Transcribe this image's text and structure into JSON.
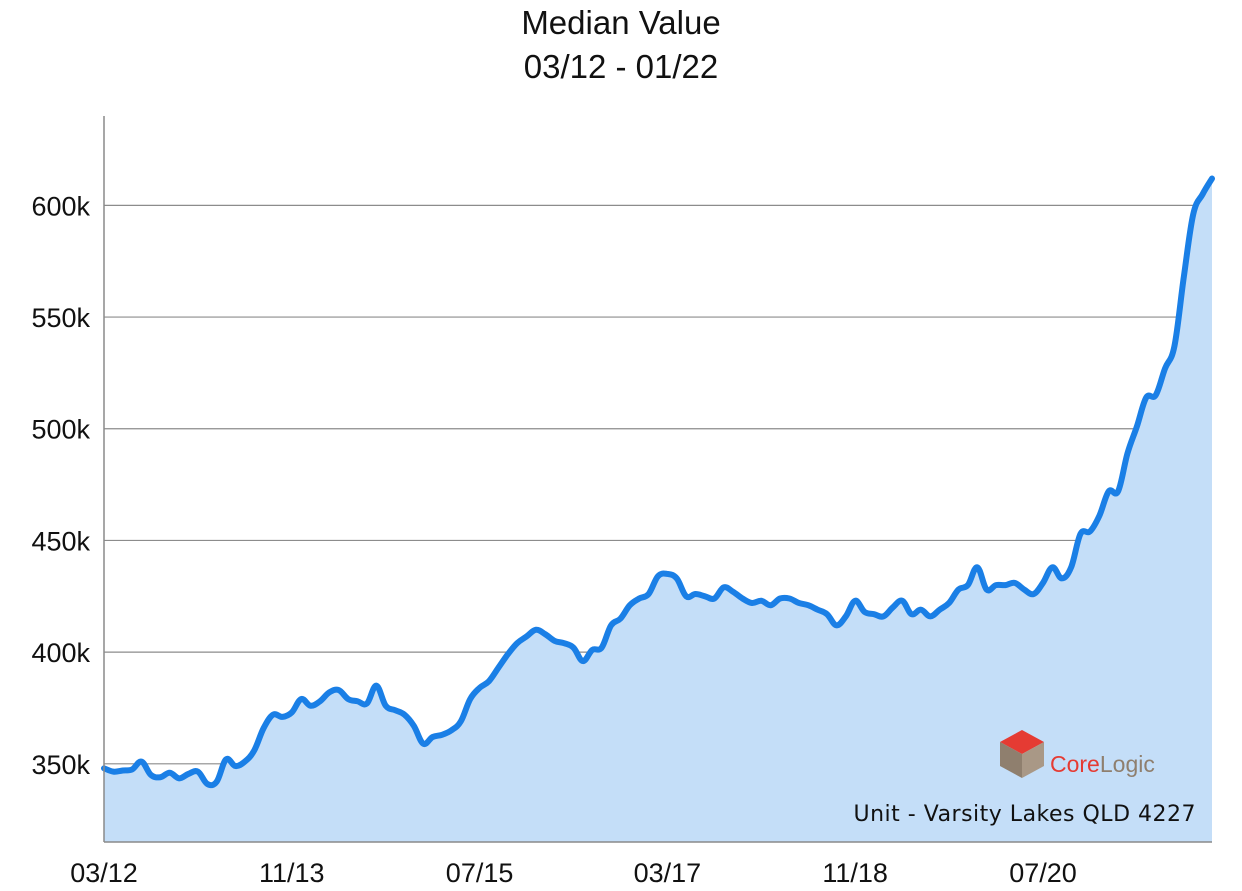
{
  "chart_data": {
    "type": "area",
    "title": "Median Value",
    "subtitle": "03/12 - 01/22",
    "xlabel": "",
    "ylabel": "",
    "x_tick_labels": [
      "03/12",
      "11/13",
      "07/15",
      "03/17",
      "11/18",
      "07/20"
    ],
    "y_tick_labels": [
      "350k",
      "400k",
      "450k",
      "500k",
      "550k",
      "600k"
    ],
    "y_ticks": [
      350000,
      400000,
      450000,
      500000,
      550000,
      600000
    ],
    "ylim": [
      315000,
      640000
    ],
    "xlim": [
      "2012-03",
      "2022-01"
    ],
    "grid": "horizontal",
    "legend": "none",
    "line_color": "#1a7fe6",
    "fill_color": "#c4def8",
    "series": [
      {
        "x": [
          "2012-03",
          "2012-04",
          "2012-05",
          "2012-06",
          "2012-07",
          "2012-08",
          "2012-09",
          "2012-10",
          "2012-11",
          "2012-12",
          "2013-01",
          "2013-02",
          "2013-03",
          "2013-04",
          "2013-05",
          "2013-06",
          "2013-07",
          "2013-08",
          "2013-09",
          "2013-10",
          "2013-11",
          "2013-12",
          "2014-01",
          "2014-02",
          "2014-03",
          "2014-04",
          "2014-05",
          "2014-06",
          "2014-07",
          "2014-08",
          "2014-09",
          "2014-10",
          "2014-11",
          "2014-12",
          "2015-01",
          "2015-02",
          "2015-03",
          "2015-04",
          "2015-05",
          "2015-06",
          "2015-07",
          "2015-08",
          "2015-09",
          "2015-10",
          "2015-11",
          "2015-12",
          "2016-01",
          "2016-02",
          "2016-03",
          "2016-04",
          "2016-05",
          "2016-06",
          "2016-07",
          "2016-08",
          "2016-09",
          "2016-10",
          "2016-11",
          "2016-12",
          "2017-01",
          "2017-02",
          "2017-03",
          "2017-04",
          "2017-05",
          "2017-06",
          "2017-07",
          "2017-08",
          "2017-09",
          "2017-10",
          "2017-11",
          "2017-12",
          "2018-01",
          "2018-02",
          "2018-03",
          "2018-04",
          "2018-05",
          "2018-06",
          "2018-07",
          "2018-08",
          "2018-09",
          "2018-10",
          "2018-11",
          "2018-12",
          "2019-01",
          "2019-02",
          "2019-03",
          "2019-04",
          "2019-05",
          "2019-06",
          "2019-07",
          "2019-08",
          "2019-09",
          "2019-10",
          "2019-11",
          "2019-12",
          "2020-01",
          "2020-02",
          "2020-03",
          "2020-04",
          "2020-05",
          "2020-06",
          "2020-07",
          "2020-08",
          "2020-09",
          "2020-10",
          "2020-11",
          "2020-12",
          "2021-01",
          "2021-02",
          "2021-03",
          "2021-04",
          "2021-05",
          "2021-06",
          "2021-07",
          "2021-08",
          "2021-09",
          "2021-10",
          "2021-11",
          "2021-12",
          "2022-01"
        ],
        "values": [
          348000,
          346500,
          347000,
          347500,
          351000,
          345000,
          344000,
          346000,
          343500,
          345500,
          346500,
          341000,
          342000,
          352000,
          349000,
          351000,
          356000,
          366000,
          372000,
          371000,
          373000,
          379000,
          376000,
          378000,
          382000,
          383000,
          379000,
          378000,
          377000,
          385000,
          376000,
          374000,
          372000,
          367000,
          359000,
          362000,
          363000,
          365000,
          369000,
          379000,
          384000,
          387000,
          393000,
          399000,
          404000,
          407000,
          410000,
          408000,
          405000,
          404000,
          402000,
          396000,
          401000,
          402000,
          412000,
          415000,
          421000,
          424000,
          426000,
          434000,
          435000,
          433000,
          425000,
          426000,
          425000,
          424000,
          429000,
          427000,
          424000,
          422000,
          423000,
          421000,
          424000,
          424000,
          422000,
          421000,
          419000,
          417000,
          412000,
          416000,
          423000,
          418000,
          417000,
          416000,
          420000,
          423000,
          417000,
          419000,
          416000,
          419000,
          422000,
          428000,
          430000,
          438000,
          428000,
          430000,
          430000,
          431000,
          428000,
          426000,
          431000,
          438000,
          433000,
          438000,
          453000,
          454000,
          461000,
          472000,
          472000,
          489000,
          501000,
          514000,
          515000,
          527000,
          537000,
          568000,
          596000,
          605000,
          612000
        ]
      }
    ]
  },
  "watermark": {
    "brand": "CoreLogic",
    "caption": "Unit - Varsity Lakes QLD 4227"
  }
}
